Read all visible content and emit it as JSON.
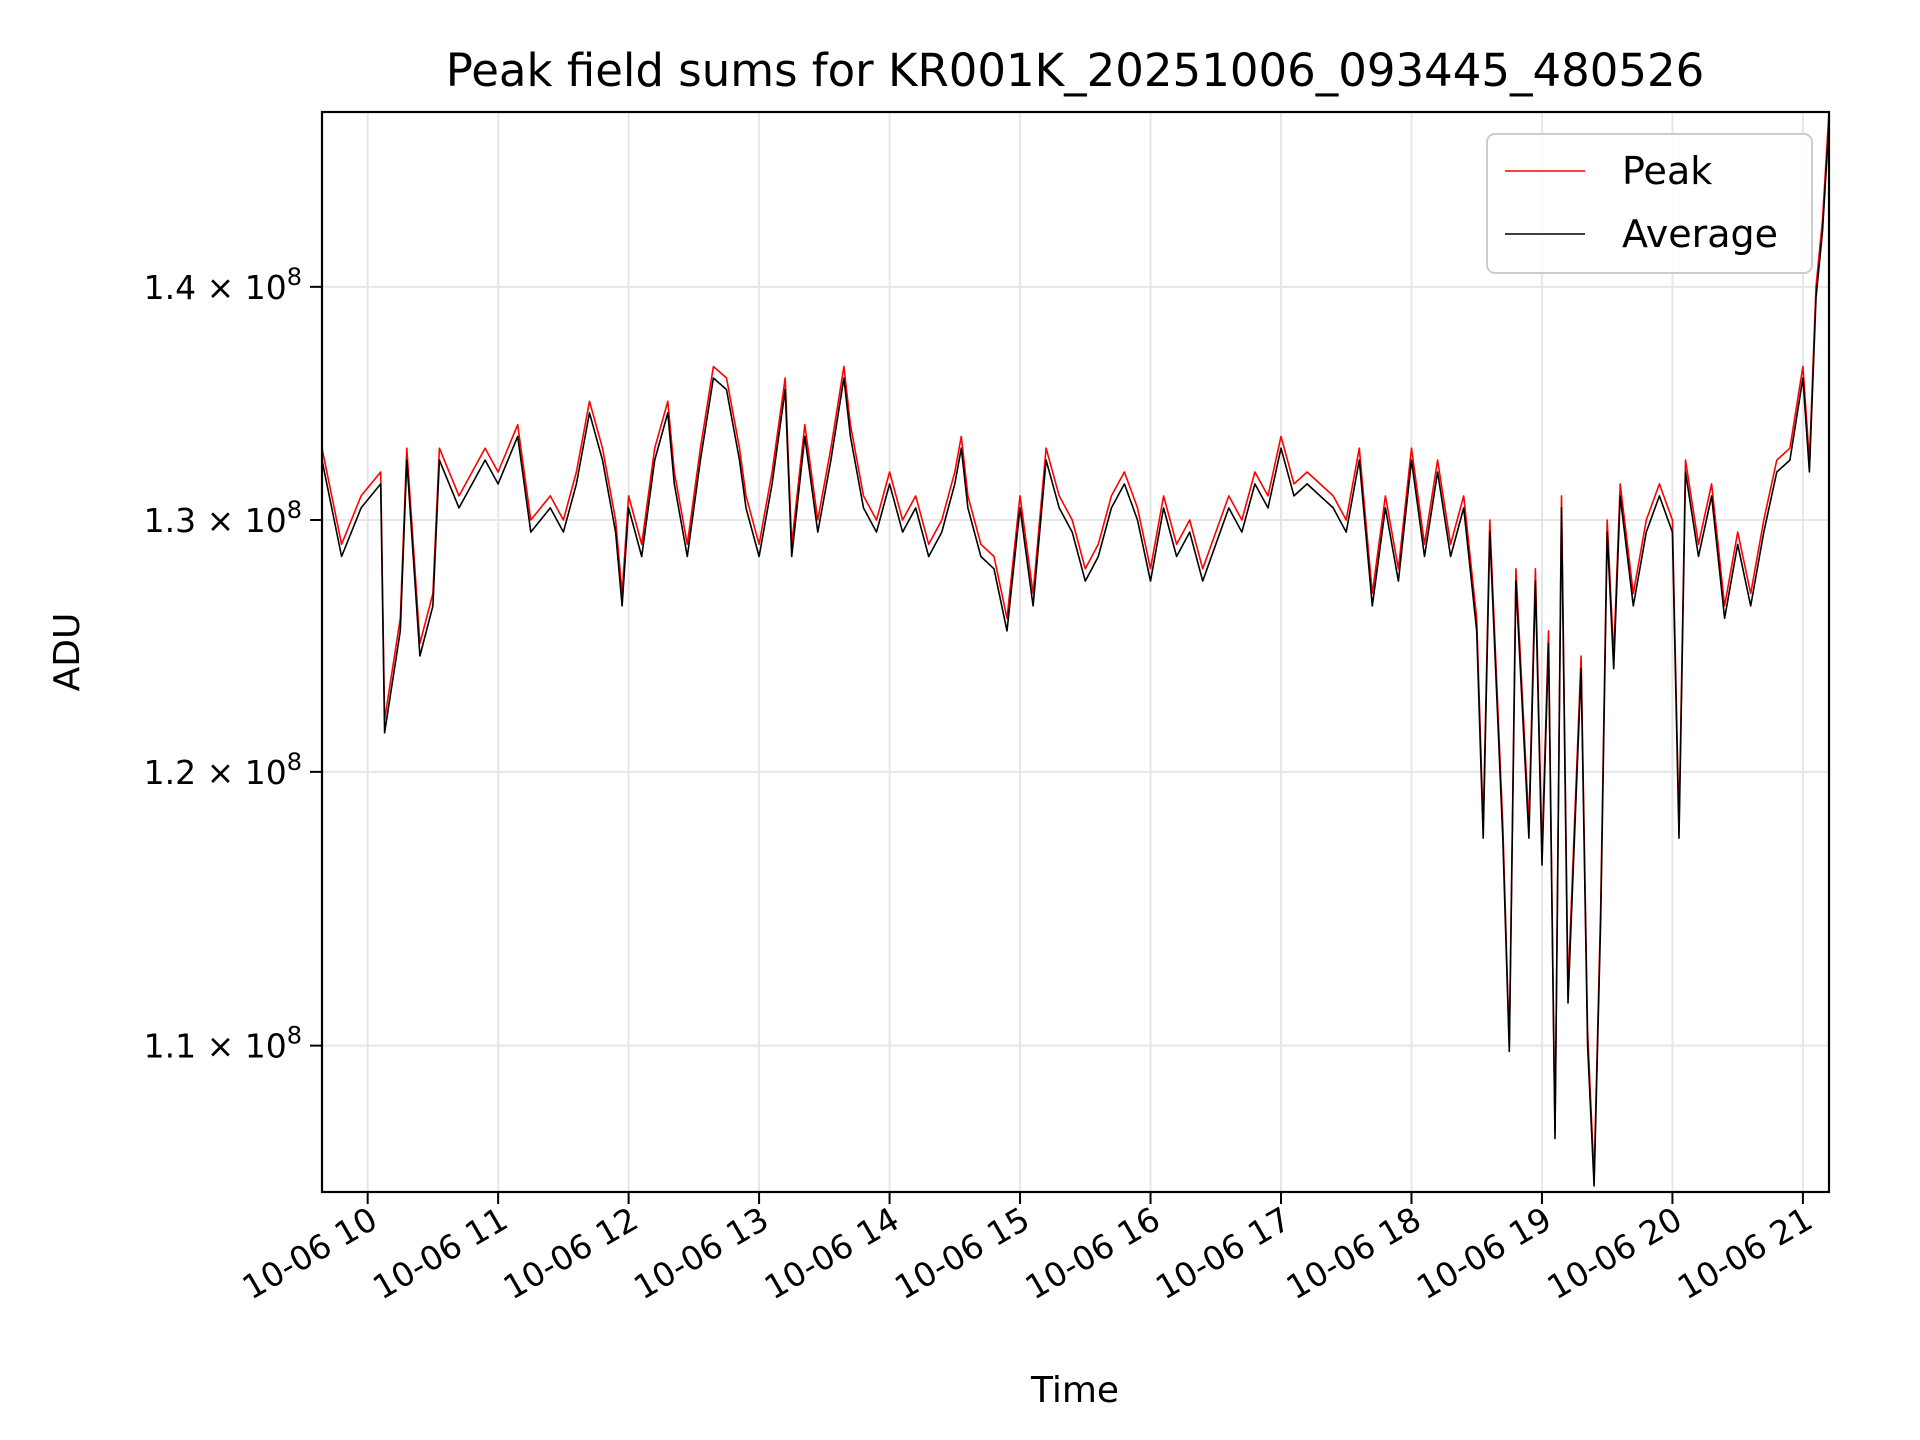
{
  "chart_data": {
    "type": "line",
    "title": "Peak field sums for KR001K_20251006_093445_480526",
    "xlabel": "Time",
    "ylabel": "ADU",
    "yscale": "log",
    "grid": true,
    "legend_position": "top-right",
    "xlim_hours": [
      9.65,
      21.2
    ],
    "ylim": [
      105000000,
      148000000
    ],
    "x_ticks": [
      {
        "hour": 10,
        "label": "10-06 10"
      },
      {
        "hour": 11,
        "label": "10-06 11"
      },
      {
        "hour": 12,
        "label": "10-06 12"
      },
      {
        "hour": 13,
        "label": "10-06 13"
      },
      {
        "hour": 14,
        "label": "10-06 14"
      },
      {
        "hour": 15,
        "label": "10-06 15"
      },
      {
        "hour": 16,
        "label": "10-06 16"
      },
      {
        "hour": 17,
        "label": "10-06 17"
      },
      {
        "hour": 18,
        "label": "10-06 18"
      },
      {
        "hour": 19,
        "label": "10-06 19"
      },
      {
        "hour": 20,
        "label": "10-06 20"
      },
      {
        "hour": 21,
        "label": "10-06 21"
      }
    ],
    "y_ticks": [
      {
        "value": 110000000,
        "mantissa": "1.1",
        "base": "10",
        "exponent": "8"
      },
      {
        "value": 120000000,
        "mantissa": "1.2",
        "base": "10",
        "exponent": "8"
      },
      {
        "value": 130000000,
        "mantissa": "1.3",
        "base": "10",
        "exponent": "8"
      },
      {
        "value": 140000000,
        "mantissa": "1.4",
        "base": "10",
        "exponent": "8"
      }
    ],
    "x_hours": [
      9.65,
      9.8,
      9.95,
      10.1,
      10.13,
      10.25,
      10.3,
      10.4,
      10.5,
      10.55,
      10.7,
      10.9,
      11.0,
      11.15,
      11.25,
      11.4,
      11.5,
      11.6,
      11.7,
      11.8,
      11.9,
      11.95,
      12.0,
      12.1,
      12.2,
      12.3,
      12.35,
      12.45,
      12.55,
      12.65,
      12.75,
      12.85,
      12.9,
      13.0,
      13.1,
      13.2,
      13.25,
      13.35,
      13.45,
      13.55,
      13.65,
      13.7,
      13.8,
      13.9,
      14.0,
      14.1,
      14.2,
      14.3,
      14.4,
      14.5,
      14.55,
      14.6,
      14.7,
      14.8,
      14.9,
      15.0,
      15.1,
      15.2,
      15.3,
      15.4,
      15.5,
      15.6,
      15.7,
      15.8,
      15.9,
      16.0,
      16.1,
      16.2,
      16.3,
      16.4,
      16.5,
      16.6,
      16.7,
      16.8,
      16.9,
      17.0,
      17.1,
      17.2,
      17.3,
      17.4,
      17.5,
      17.6,
      17.7,
      17.8,
      17.9,
      18.0,
      18.1,
      18.2,
      18.3,
      18.4,
      18.5,
      18.55,
      18.6,
      18.7,
      18.75,
      18.8,
      18.9,
      18.95,
      19.0,
      19.05,
      19.1,
      19.15,
      19.2,
      19.3,
      19.35,
      19.4,
      19.45,
      19.5,
      19.55,
      19.6,
      19.7,
      19.8,
      19.9,
      20.0,
      20.05,
      20.1,
      20.2,
      20.3,
      20.4,
      20.5,
      20.6,
      20.7,
      20.8,
      20.9,
      21.0,
      21.05,
      21.1,
      21.15,
      21.2
    ],
    "series": [
      {
        "name": "Peak",
        "color": "#ff0000",
        "values": [
          133000000,
          129000000,
          131000000,
          132000000,
          122000000,
          126000000,
          133000000,
          125000000,
          127000000,
          133000000,
          131000000,
          133000000,
          132000000,
          134000000,
          130000000,
          131000000,
          130000000,
          132000000,
          135000000,
          133000000,
          130000000,
          127000000,
          131000000,
          129000000,
          133000000,
          135000000,
          132000000,
          129000000,
          133000000,
          136500000,
          136000000,
          133000000,
          131000000,
          129000000,
          132000000,
          136000000,
          129000000,
          134000000,
          130000000,
          133000000,
          136500000,
          134000000,
          131000000,
          130000000,
          132000000,
          130000000,
          131000000,
          129000000,
          130000000,
          132000000,
          133500000,
          131000000,
          129000000,
          128500000,
          126000000,
          131000000,
          127000000,
          133000000,
          131000000,
          130000000,
          128000000,
          129000000,
          131000000,
          132000000,
          130500000,
          128000000,
          131000000,
          129000000,
          130000000,
          128000000,
          129500000,
          131000000,
          130000000,
          132000000,
          131000000,
          133500000,
          131500000,
          132000000,
          131500000,
          131000000,
          130000000,
          133000000,
          127000000,
          131000000,
          128000000,
          133000000,
          129000000,
          132500000,
          129000000,
          131000000,
          126000000,
          118000000,
          130000000,
          118000000,
          110000000,
          128000000,
          118000000,
          128000000,
          117000000,
          125500000,
          107000000,
          131000000,
          112000000,
          124500000,
          110500000,
          105500000,
          115000000,
          130000000,
          124500000,
          131500000,
          127000000,
          130000000,
          131500000,
          130000000,
          118000000,
          132500000,
          129000000,
          131500000,
          126500000,
          129500000,
          127000000,
          130000000,
          132500000,
          133000000,
          136500000,
          132500000,
          140000000,
          143000000,
          148000000
        ]
      },
      {
        "name": "Average",
        "color": "#000000",
        "values": [
          132500000,
          128500000,
          130500000,
          131500000,
          121500000,
          125500000,
          132500000,
          124500000,
          126500000,
          132500000,
          130500000,
          132500000,
          131500000,
          133500000,
          129500000,
          130500000,
          129500000,
          131500000,
          134500000,
          132500000,
          129500000,
          126500000,
          130500000,
          128500000,
          132500000,
          134500000,
          131500000,
          128500000,
          132500000,
          136000000,
          135500000,
          132500000,
          130500000,
          128500000,
          131500000,
          135500000,
          128500000,
          133500000,
          129500000,
          132500000,
          136000000,
          133500000,
          130500000,
          129500000,
          131500000,
          129500000,
          130500000,
          128500000,
          129500000,
          131500000,
          133000000,
          130500000,
          128500000,
          128000000,
          125500000,
          130500000,
          126500000,
          132500000,
          130500000,
          129500000,
          127500000,
          128500000,
          130500000,
          131500000,
          130000000,
          127500000,
          130500000,
          128500000,
          129500000,
          127500000,
          129000000,
          130500000,
          129500000,
          131500000,
          130500000,
          133000000,
          131000000,
          131500000,
          131000000,
          130500000,
          129500000,
          132500000,
          126500000,
          130500000,
          127500000,
          132500000,
          128500000,
          132000000,
          128500000,
          130500000,
          125500000,
          117500000,
          129500000,
          117500000,
          109800000,
          127500000,
          117500000,
          127500000,
          116500000,
          125000000,
          106800000,
          130500000,
          111500000,
          124000000,
          110000000,
          105200000,
          114500000,
          129500000,
          124000000,
          131000000,
          126500000,
          129500000,
          131000000,
          129500000,
          117500000,
          132000000,
          128500000,
          131000000,
          126000000,
          129000000,
          126500000,
          129500000,
          132000000,
          132500000,
          136000000,
          132000000,
          139500000,
          142500000,
          147500000
        ]
      }
    ]
  }
}
